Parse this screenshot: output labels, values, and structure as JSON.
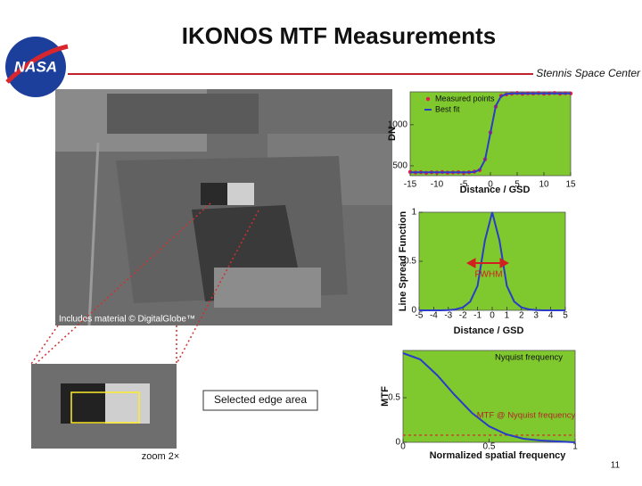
{
  "header": {
    "title": "IKONOS MTF Measurements",
    "logo_text": "NASA",
    "center": "Stennis Space Center"
  },
  "photo": {
    "credit": "Includes material © DigitalGlobe™"
  },
  "inset": {
    "zoom_label": "zoom 2×",
    "selection_label": "Selected edge area"
  },
  "page_number": "11",
  "chart_data": [
    {
      "type": "line",
      "ylabel": "DN",
      "xlabel": "Distance / GSD",
      "x": [
        -15,
        -14,
        -13,
        -12,
        -11,
        -10,
        -9,
        -8,
        -7,
        -6,
        -5,
        -4,
        -3,
        -2,
        -1,
        0,
        1,
        2,
        3,
        4,
        5,
        6,
        7,
        8,
        9,
        10,
        11,
        12,
        13,
        14,
        15
      ],
      "series": [
        {
          "name": "Measured points",
          "color": "#e0204a",
          "mode": "markers",
          "values": [
            425,
            418,
            422,
            415,
            421,
            419,
            424,
            417,
            420,
            423,
            416,
            421,
            430,
            448,
            580,
            905,
            1220,
            1352,
            1370,
            1378,
            1385,
            1376,
            1382,
            1379,
            1384,
            1377,
            1381,
            1386,
            1378,
            1383,
            1380
          ]
        },
        {
          "name": "Best fit",
          "color": "#2a3cc8",
          "mode": "line",
          "values": [
            420,
            420,
            420,
            420,
            420,
            420,
            420,
            420,
            420,
            420,
            420,
            420,
            426,
            453,
            573,
            900,
            1227,
            1347,
            1374,
            1380,
            1380,
            1380,
            1380,
            1380,
            1380,
            1380,
            1380,
            1380,
            1380,
            1380,
            1380
          ]
        }
      ],
      "xlim": [
        -15,
        15
      ],
      "ylim": [
        380,
        1400
      ],
      "xticks": [
        -15,
        -10,
        -5,
        0,
        5,
        10,
        15
      ],
      "yticks": [
        500,
        1000
      ]
    },
    {
      "type": "line",
      "ylabel": "Line Spread Function",
      "xlabel": "Distance / GSD",
      "x": [
        -5,
        -4.5,
        -4,
        -3.5,
        -3,
        -2.5,
        -2,
        -1.5,
        -1,
        -0.5,
        0,
        0.5,
        1,
        1.5,
        2,
        2.5,
        3,
        3.5,
        4,
        4.5,
        5
      ],
      "series": [
        {
          "color": "#2a3cc8",
          "mode": "line",
          "values": [
            0,
            0,
            0,
            0,
            0.002,
            0.01,
            0.03,
            0.09,
            0.25,
            0.71,
            1,
            0.71,
            0.25,
            0.09,
            0.03,
            0.01,
            0.002,
            0,
            0,
            0,
            0
          ]
        }
      ],
      "xlim": [
        -5,
        5
      ],
      "ylim": [
        0,
        1
      ],
      "xticks": [
        -5,
        -4,
        -3,
        -2,
        -1,
        0,
        1,
        2,
        3,
        4,
        5
      ],
      "yticks": [
        0,
        0.5,
        1
      ],
      "annotations": [
        "FWHM"
      ]
    },
    {
      "type": "line",
      "ylabel": "MTF",
      "xlabel": "Normalized spatial frequency",
      "x": [
        0,
        0.1,
        0.2,
        0.3,
        0.4,
        0.5,
        0.6,
        0.7,
        0.8,
        0.9,
        1
      ],
      "series": [
        {
          "color": "#2a3cc8",
          "mode": "line",
          "values": [
            1,
            0.93,
            0.75,
            0.53,
            0.33,
            0.18,
            0.09,
            0.04,
            0.02,
            0.01,
            0
          ]
        }
      ],
      "xlim": [
        0,
        1
      ],
      "ylim": [
        0,
        1.03
      ],
      "xticks": [
        0,
        0.5,
        1
      ],
      "yticks": [
        0,
        0.5
      ],
      "annotations": [
        "Nyquist frequency",
        "MTF @ Nyquist frequency"
      ]
    }
  ]
}
